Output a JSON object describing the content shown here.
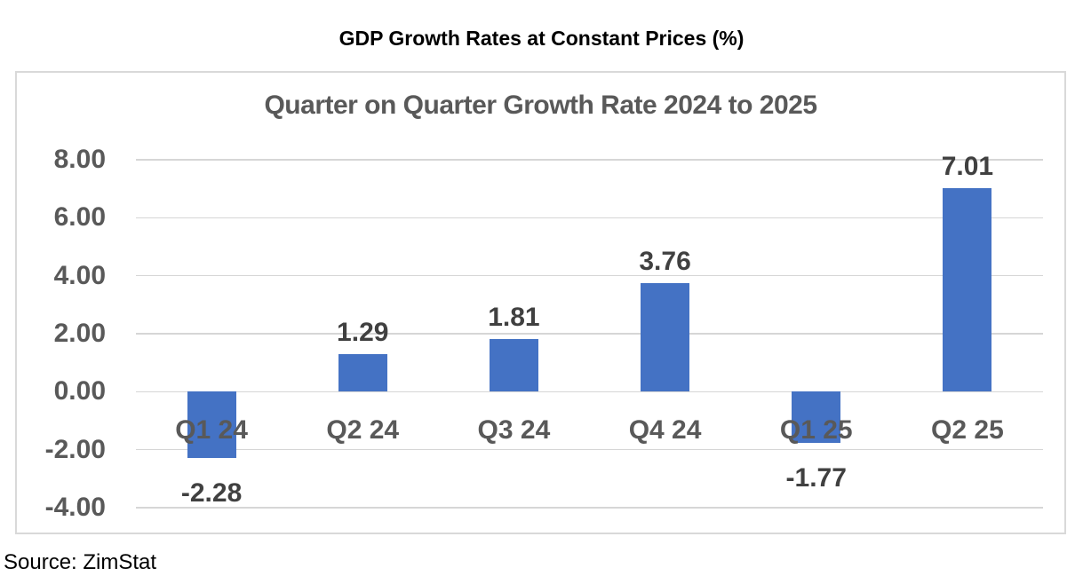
{
  "page": {
    "title": "GDP Growth Rates at Constant Prices (%)",
    "source": "Source: ZimStat"
  },
  "chart_data": {
    "type": "bar",
    "title": "Quarter on Quarter Growth Rate 2024 to 2025",
    "categories": [
      "Q1 24",
      "Q2 24",
      "Q3 24",
      "Q4 24",
      "Q1 25",
      "Q2 25"
    ],
    "values": [
      -2.28,
      1.29,
      1.81,
      3.76,
      -1.77,
      7.01
    ],
    "data_labels": [
      "-2.28",
      "1.29",
      "1.81",
      "3.76",
      "-1.77",
      "7.01"
    ],
    "xlabel": "",
    "ylabel": "",
    "ylim": [
      -4,
      8
    ],
    "ytick_step": 2,
    "ytick_labels": [
      "8.00",
      "6.00",
      "4.00",
      "2.00",
      "0.00",
      "-2.00",
      "-4.00"
    ],
    "grid": true,
    "legend": "none",
    "bar_color": "#4472C4",
    "gridline_color": "#D6D6D6",
    "tick_label_color": "#595959",
    "category_label_color": "#595959",
    "data_label_color": "#404040",
    "title_color": "#595959"
  }
}
